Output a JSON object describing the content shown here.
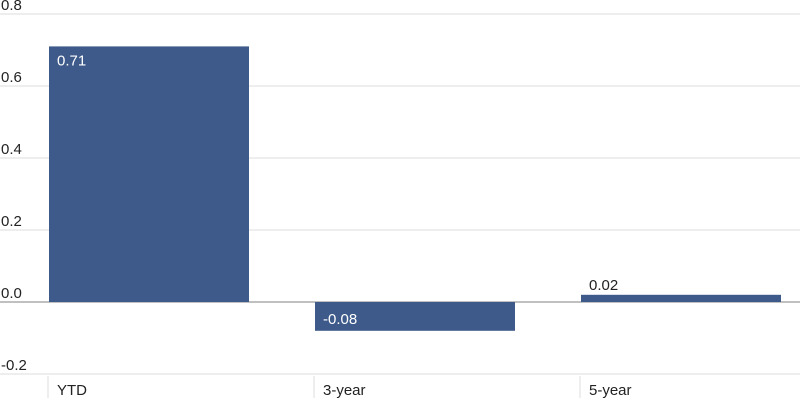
{
  "chart_data": {
    "type": "bar",
    "title": "",
    "xlabel": "",
    "ylabel": "",
    "categories": [
      "YTD",
      "3-year",
      "5-year"
    ],
    "values": [
      0.71,
      -0.08,
      0.02
    ],
    "value_labels": [
      "0.71",
      "-0.08",
      "0.02"
    ],
    "ylim": [
      -0.2,
      0.8
    ],
    "yticks": [
      0.8,
      0.6,
      0.4,
      0.2,
      0.0,
      -0.2
    ],
    "ytick_labels": [
      "0.8",
      "0.6",
      "0.4",
      "0.2",
      "0.0",
      "-0.2"
    ],
    "grid": true,
    "legend": "none",
    "colors": {
      "bar": "#3d5a8a",
      "grid": "#dcdcdc",
      "zero_line": "#9a9a9a",
      "label_inside": "#ffffff",
      "label_outside": "#222222"
    }
  }
}
